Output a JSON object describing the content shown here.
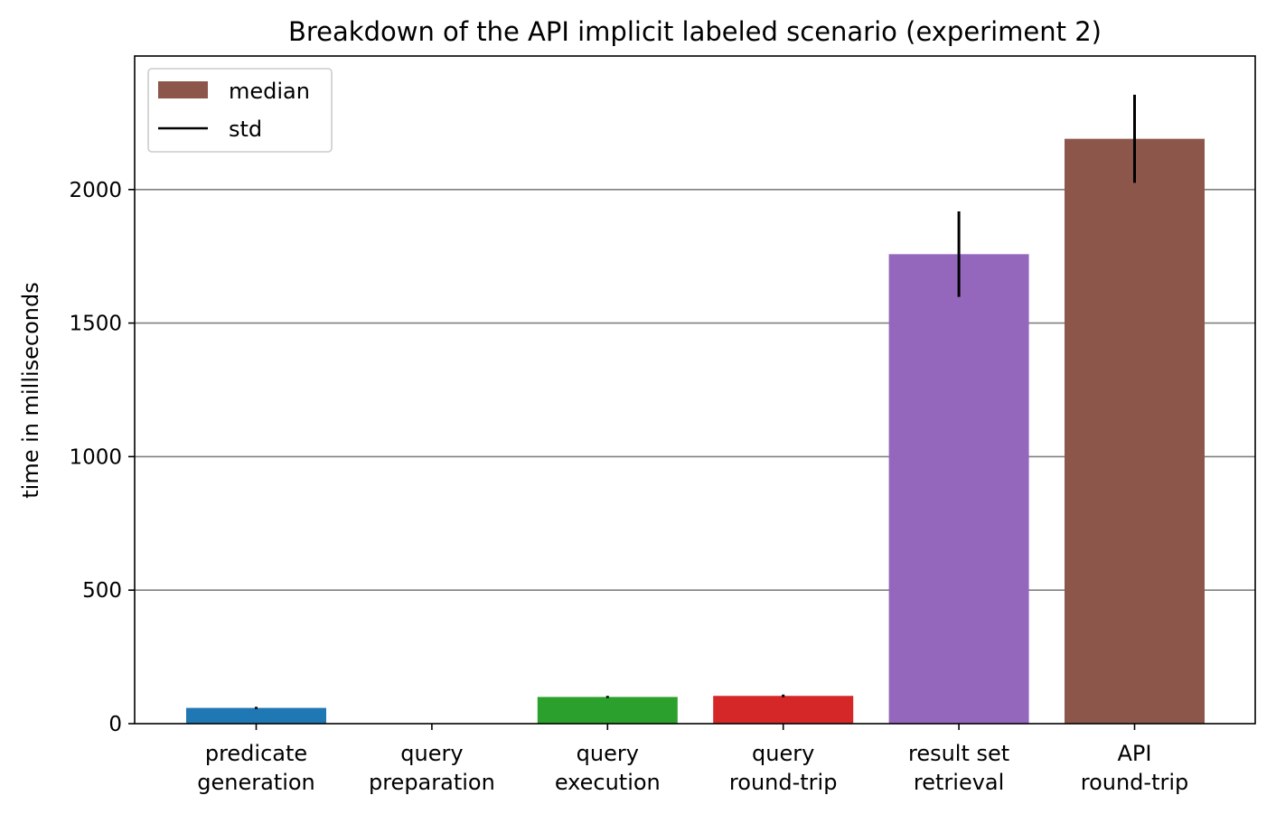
{
  "chart_data": {
    "type": "bar",
    "title": "Breakdown of the API implicit labeled scenario (experiment 2)",
    "xlabel": "",
    "ylabel": "time in milliseconds",
    "categories": [
      [
        "predicate",
        "generation"
      ],
      [
        "query",
        "preparation"
      ],
      [
        "query",
        "execution"
      ],
      [
        "query",
        "round-trip"
      ],
      [
        "result set",
        "retrieval"
      ],
      [
        "API",
        "round-trip"
      ]
    ],
    "values": [
      59,
      0,
      100,
      104,
      1758,
      2190
    ],
    "std": [
      4,
      0,
      4,
      5,
      160,
      165
    ],
    "colors": [
      "#1f77b4",
      "#ff7f0e",
      "#2ca02c",
      "#d62728",
      "#9467bd",
      "#8c564b"
    ],
    "error_color": "#000000",
    "ylim": [
      0,
      2500
    ],
    "yticks": [
      0,
      500,
      1000,
      1500,
      2000
    ],
    "grid": "y",
    "grid_color": "#808080",
    "legend": {
      "placement": "top-left",
      "entries": [
        {
          "label": "median",
          "kind": "patch",
          "color": "#8c564b"
        },
        {
          "label": "std",
          "kind": "line",
          "color": "#000000"
        }
      ]
    }
  }
}
